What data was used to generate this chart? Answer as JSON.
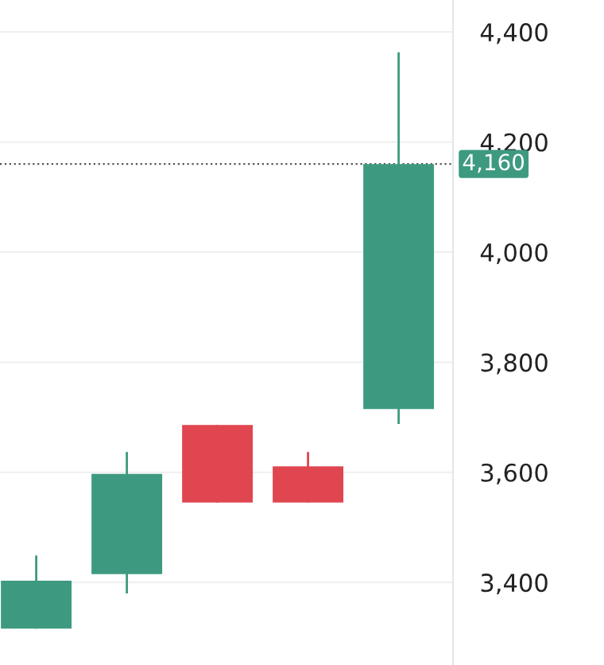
{
  "chart_data": {
    "type": "candlestick",
    "categories": [
      null,
      null,
      null,
      null,
      null
    ],
    "ohlc": [
      [
        3316,
        3449,
        3316,
        3403
      ],
      [
        3415,
        3637,
        3380,
        3597
      ],
      [
        3686,
        3686,
        3545,
        3545
      ],
      [
        3611,
        3637,
        3545,
        3545
      ],
      [
        3715,
        4363,
        3688,
        4160
      ]
    ],
    "colors": [
      "#3d9a80",
      "#3d9a80",
      "#e0464f",
      "#e0464f",
      "#3d9a80"
    ],
    "ylim": [
      3250,
      4458
    ],
    "yticks": [
      {
        "value": 3400,
        "label": "3,400"
      },
      {
        "value": 3600,
        "label": "3,600"
      },
      {
        "value": 3800,
        "label": "3,800"
      },
      {
        "value": 4000,
        "label": "4,000"
      },
      {
        "value": 4200,
        "label": "4,200"
      },
      {
        "value": 4400,
        "label": "4,400"
      }
    ],
    "ref_lines": [
      {
        "axis": "y",
        "value": 4160,
        "label": "4,160",
        "color": "#555555",
        "line_style": "dotted"
      }
    ],
    "grid": "y",
    "tick_labels": "y"
  }
}
